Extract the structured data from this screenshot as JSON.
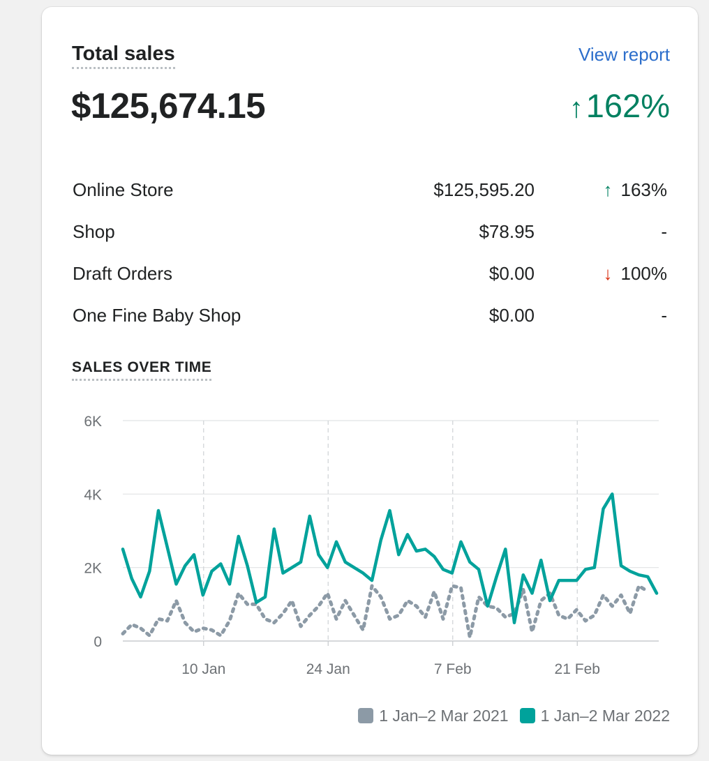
{
  "card": {
    "title": "Total sales",
    "view_report": "View report",
    "total": "$125,674.15",
    "total_change": "162%",
    "total_change_direction": "up",
    "channels": [
      {
        "name": "Online Store",
        "value": "$125,595.20",
        "change": "163%",
        "direction": "up"
      },
      {
        "name": "Shop",
        "value": "$78.95",
        "change": "-",
        "direction": "none"
      },
      {
        "name": "Draft Orders",
        "value": "$0.00",
        "change": "100%",
        "direction": "down"
      },
      {
        "name": "One Fine Baby Shop",
        "value": "$0.00",
        "change": "-",
        "direction": "none"
      }
    ],
    "chart_title": "SALES OVER TIME"
  },
  "colors": {
    "positive": "#008060",
    "negative": "#d82c0d",
    "link": "#2c6ecb",
    "current_series": "#00a29b",
    "previous_series": "#8c9aa6"
  },
  "chart_data": {
    "type": "line",
    "title": "SALES OVER TIME",
    "x_ticks": [
      "10 Jan",
      "24 Jan",
      "7 Feb",
      "21 Feb"
    ],
    "y_ticks": [
      "0",
      "2K",
      "4K",
      "6K"
    ],
    "ylim": [
      0,
      6000
    ],
    "x_range": [
      "1 Jan",
      "2 Mar"
    ],
    "grid": true,
    "legend_position": "bottom-right",
    "series": [
      {
        "name": "1 Jan–2 Mar 2021",
        "style": "dotted",
        "values": [
          200,
          450,
          350,
          150,
          600,
          550,
          1100,
          500,
          250,
          350,
          300,
          150,
          550,
          1300,
          1000,
          1000,
          600,
          500,
          750,
          1100,
          400,
          700,
          950,
          1300,
          600,
          1100,
          700,
          300,
          1500,
          1200,
          600,
          700,
          1100,
          950,
          650,
          1350,
          600,
          1500,
          1450,
          100,
          1200,
          950,
          900,
          650,
          750,
          1400,
          250,
          1100,
          1300,
          700,
          600,
          850,
          550,
          700,
          1250,
          950,
          1250,
          750,
          1500,
          1350
        ],
        "x_dates": [
          "1 Jan",
          "2 Jan",
          "3 Jan",
          "4 Jan",
          "5 Jan",
          "6 Jan",
          "7 Jan",
          "8 Jan",
          "9 Jan",
          "10 Jan",
          "11 Jan",
          "12 Jan",
          "13 Jan",
          "14 Jan",
          "15 Jan",
          "16 Jan",
          "17 Jan",
          "18 Jan",
          "19 Jan",
          "20 Jan",
          "21 Jan",
          "22 Jan",
          "23 Jan",
          "24 Jan",
          "25 Jan",
          "26 Jan",
          "27 Jan",
          "28 Jan",
          "29 Jan",
          "30 Jan",
          "31 Jan",
          "1 Feb",
          "2 Feb",
          "3 Feb",
          "4 Feb",
          "5 Feb",
          "6 Feb",
          "7 Feb",
          "8 Feb",
          "9 Feb",
          "10 Feb",
          "11 Feb",
          "12 Feb",
          "13 Feb",
          "14 Feb",
          "15 Feb",
          "16 Feb",
          "17 Feb",
          "18 Feb",
          "19 Feb",
          "20 Feb",
          "21 Feb",
          "22 Feb",
          "23 Feb",
          "24 Feb",
          "25 Feb",
          "26 Feb",
          "27 Feb",
          "28 Feb",
          "1 Mar"
        ]
      },
      {
        "name": "1 Jan–2 Mar 2022",
        "style": "solid",
        "values": [
          2500,
          1700,
          1200,
          1900,
          3550,
          2550,
          1550,
          2050,
          2350,
          1250,
          1900,
          2100,
          1550,
          2850,
          2050,
          1050,
          1200,
          3050,
          1850,
          2000,
          2150,
          3400,
          2350,
          2000,
          2700,
          2150,
          2000,
          1850,
          1650,
          2750,
          3550,
          2350,
          2900,
          2450,
          2500,
          2300,
          1950,
          1850,
          2700,
          2150,
          1950,
          950,
          1750,
          2500,
          500,
          1800,
          1300,
          2200,
          1100,
          1650,
          1650,
          1650,
          1950,
          2000,
          3600,
          4000,
          2050,
          1900,
          1800,
          1750,
          1300
        ],
        "x_dates": [
          "1 Jan",
          "2 Jan",
          "3 Jan",
          "4 Jan",
          "5 Jan",
          "6 Jan",
          "7 Jan",
          "8 Jan",
          "9 Jan",
          "10 Jan",
          "11 Jan",
          "12 Jan",
          "13 Jan",
          "14 Jan",
          "15 Jan",
          "16 Jan",
          "17 Jan",
          "18 Jan",
          "19 Jan",
          "20 Jan",
          "21 Jan",
          "22 Jan",
          "23 Jan",
          "24 Jan",
          "25 Jan",
          "26 Jan",
          "27 Jan",
          "28 Jan",
          "29 Jan",
          "30 Jan",
          "31 Jan",
          "1 Feb",
          "2 Feb",
          "3 Feb",
          "4 Feb",
          "5 Feb",
          "6 Feb",
          "7 Feb",
          "8 Feb",
          "9 Feb",
          "10 Feb",
          "11 Feb",
          "12 Feb",
          "13 Feb",
          "14 Feb",
          "15 Feb",
          "16 Feb",
          "17 Feb",
          "18 Feb",
          "19 Feb",
          "20 Feb",
          "21 Feb",
          "22 Feb",
          "23 Feb",
          "24 Feb",
          "25 Feb",
          "26 Feb",
          "27 Feb",
          "28 Feb",
          "1 Mar",
          "2 Mar"
        ]
      }
    ]
  }
}
